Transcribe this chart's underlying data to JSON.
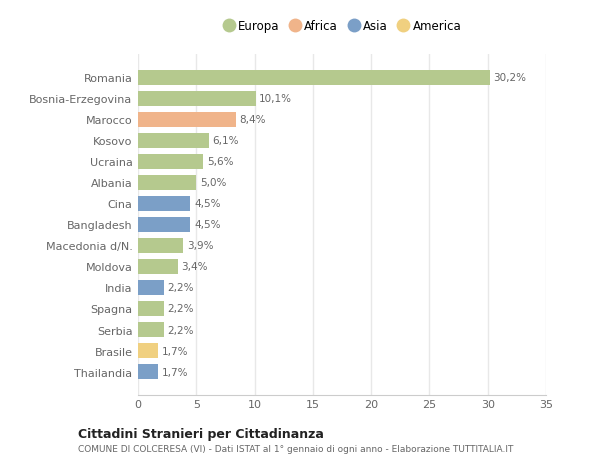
{
  "countries": [
    "Romania",
    "Bosnia-Erzegovina",
    "Marocco",
    "Kosovo",
    "Ucraina",
    "Albania",
    "Cina",
    "Bangladesh",
    "Macedonia d/N.",
    "Moldova",
    "India",
    "Spagna",
    "Serbia",
    "Brasile",
    "Thailandia"
  ],
  "values": [
    30.2,
    10.1,
    8.4,
    6.1,
    5.6,
    5.0,
    4.5,
    4.5,
    3.9,
    3.4,
    2.2,
    2.2,
    2.2,
    1.7,
    1.7
  ],
  "labels": [
    "30,2%",
    "10,1%",
    "8,4%",
    "6,1%",
    "5,6%",
    "5,0%",
    "4,5%",
    "4,5%",
    "3,9%",
    "3,4%",
    "2,2%",
    "2,2%",
    "2,2%",
    "1,7%",
    "1,7%"
  ],
  "continents": [
    "Europa",
    "Europa",
    "Africa",
    "Europa",
    "Europa",
    "Europa",
    "Asia",
    "Asia",
    "Europa",
    "Europa",
    "Asia",
    "Europa",
    "Europa",
    "America",
    "Asia"
  ],
  "continent_colors": {
    "Europa": "#b5c98e",
    "Africa": "#f0b48a",
    "Asia": "#7b9fc7",
    "America": "#f0d080"
  },
  "legend_order": [
    "Europa",
    "Africa",
    "Asia",
    "America"
  ],
  "legend_colors": [
    "#b5c98e",
    "#f0b48a",
    "#7b9fc7",
    "#f0d080"
  ],
  "title_main": "Cittadini Stranieri per Cittadinanza",
  "title_sub": "COMUNE DI COLCERESA (VI) - Dati ISTAT al 1° gennaio di ogni anno - Elaborazione TUTTITALIA.IT",
  "xlim": [
    0,
    35
  ],
  "xticks": [
    0,
    5,
    10,
    15,
    20,
    25,
    30,
    35
  ],
  "background_color": "#ffffff",
  "grid_color": "#e8e8e8",
  "bar_height": 0.72
}
